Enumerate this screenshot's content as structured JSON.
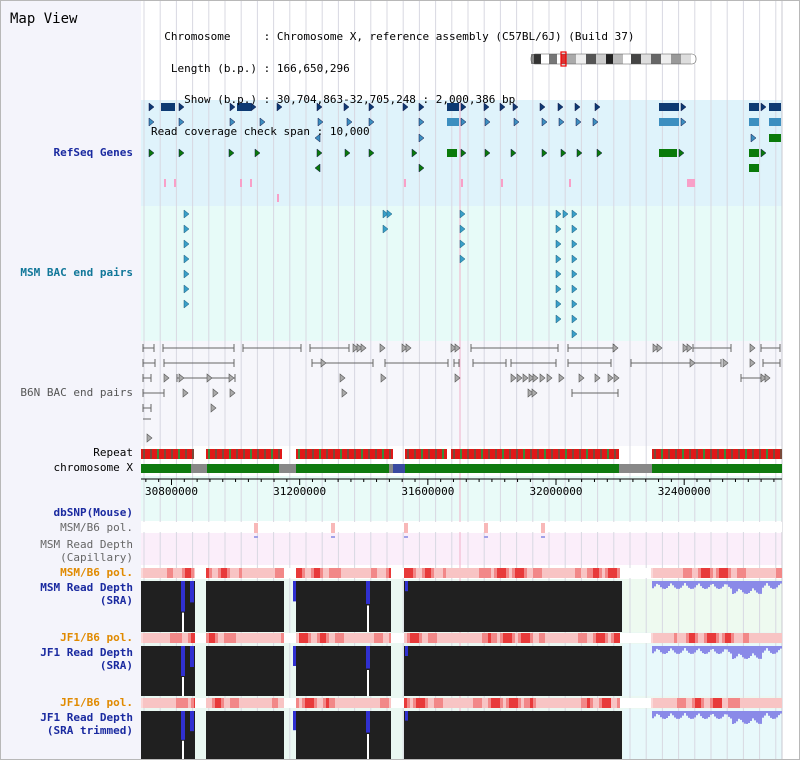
{
  "page": {
    "title": "Map View"
  },
  "info": {
    "chromosome_key": "Chromosome",
    "chromosome_val": "Chromosome X, reference assembly (C57BL/6J) (Build 37)",
    "length_key": "Length (b.p.)",
    "length_val": "166,650,296",
    "show_key": "Show (b.p.)",
    "show_val": "30,704,863-32,705,248 : 2,000,386 bp",
    "coverage_key": "Read coverage check span",
    "coverage_val": "10,000"
  },
  "tracks": {
    "refseq": "RefSeq Genes",
    "msm_bac": "MSM BAC end pairs",
    "b6n_bac": "B6N BAC end pairs",
    "repeat": "Repeat",
    "chromosome": "chromosome X",
    "dbsnp": "dbSNP(Mouse)",
    "msm_b6_pol_1": "MSM/B6 pol.",
    "msm_read_cap_1": "MSM Read Depth",
    "msm_read_cap_2": "(Capillary)",
    "msm_b6_pol_2": "MSM/B6 pol.",
    "msm_read_sra_1": "MSM Read Depth",
    "msm_read_sra_2": "(SRA)",
    "jf1_pol_1": "JF1/B6 pol.",
    "jf1_read_sra_1": "JF1 Read Depth",
    "jf1_read_sra_2": "(SRA)",
    "jf1_pol_2": "JF1/B6 pol.",
    "jf1_trim_1": "JF1 Read Depth",
    "jf1_trim_2": "(SRA trimmed)"
  },
  "axis": {
    "range_bp": [
      30704863,
      32705248
    ],
    "ticks": [
      "30800000",
      "31200000",
      "31600000",
      "32000000",
      "32400000"
    ],
    "tick_values": [
      30800000,
      31200000,
      31600000,
      32000000,
      32400000
    ]
  },
  "colors": {
    "refseq_bg": "#dff3fb",
    "msm_bg": "#e7fbf8",
    "gene_dark": "#0d3a73",
    "gene_mid": "#3d8fc0",
    "gene_green": "#0a7a0a",
    "chrom_green": "#0f7a0f",
    "repeat_red": "#e01818",
    "depth_black": "#202020",
    "depth_blue": "#3030d0"
  }
}
